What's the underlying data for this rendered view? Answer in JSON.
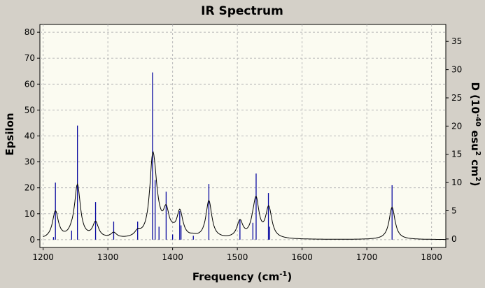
{
  "colors": {
    "window_bg": "#d4d0c8",
    "plot_bg": "#fbfbf1",
    "grid": "#b8b8b8",
    "curve": "#000000",
    "sticks": "#0a0aa0"
  },
  "chart_data": {
    "type": "line",
    "title": "IR Spectrum",
    "xlabel": "Frequency (cm",
    "xlabel_sup": "-1",
    "xlabel_end": ")",
    "ylabel": "Epsilon",
    "y2label": {
      "a": "D (10",
      "a_sup": "-40",
      "b": " esu",
      "b_sup": "2",
      "c": " cm",
      "c_sup": "2",
      "d": ")"
    },
    "xlim": [
      1195,
      1822
    ],
    "ylim": [
      -3,
      83
    ],
    "y2lim": [
      -1.5,
      38
    ],
    "xticks": [
      1200,
      1300,
      1400,
      1500,
      1600,
      1700,
      1800
    ],
    "yticks": [
      0,
      10,
      20,
      30,
      40,
      50,
      60,
      70,
      80
    ],
    "y2ticks": [
      0,
      5,
      10,
      15,
      20,
      25,
      30,
      35
    ],
    "grid": true,
    "baseline_y": 0,
    "curve_range": [
      1200,
      1822
    ],
    "series": [
      {
        "kind": "curve",
        "lorentz_hwhm": 5.5,
        "offset": 1.5,
        "peaks": [
          {
            "x": 1219,
            "y": 10.5
          },
          {
            "x": 1244,
            "y": 1.0
          },
          {
            "x": 1253,
            "y": 20.5
          },
          {
            "x": 1281,
            "y": 6.0
          },
          {
            "x": 1309,
            "y": 2.0
          },
          {
            "x": 1346,
            "y": 2.0
          },
          {
            "x": 1369,
            "y": 26.0
          },
          {
            "x": 1373,
            "y": 9.0
          },
          {
            "x": 1379,
            "y": 2.0
          },
          {
            "x": 1390,
            "y": 9.5
          },
          {
            "x": 1400,
            "y": 1.0
          },
          {
            "x": 1411,
            "y": 9.0
          },
          {
            "x": 1413,
            "y": 1.0
          },
          {
            "x": 1432,
            "y": 0.5
          },
          {
            "x": 1456,
            "y": 14.5
          },
          {
            "x": 1504,
            "y": 6.5
          },
          {
            "x": 1524,
            "y": 2.5
          },
          {
            "x": 1529,
            "y": 14.0
          },
          {
            "x": 1548,
            "y": 9.0
          },
          {
            "x": 1550,
            "y": 3.0
          },
          {
            "x": 1739,
            "y": 12.5
          }
        ]
      },
      {
        "kind": "sticks",
        "points": [
          {
            "x": 1216,
            "y": 1.0
          },
          {
            "x": 1219,
            "y": 22.0
          },
          {
            "x": 1244,
            "y": 3.5
          },
          {
            "x": 1253,
            "y": 44.0
          },
          {
            "x": 1281,
            "y": 14.5
          },
          {
            "x": 1309,
            "y": 7.0
          },
          {
            "x": 1346,
            "y": 7.0
          },
          {
            "x": 1369,
            "y": 64.5
          },
          {
            "x": 1373,
            "y": 23.0
          },
          {
            "x": 1379,
            "y": 5.0
          },
          {
            "x": 1390,
            "y": 18.5
          },
          {
            "x": 1400,
            "y": 2.0
          },
          {
            "x": 1411,
            "y": 11.0
          },
          {
            "x": 1413,
            "y": 5.5
          },
          {
            "x": 1432,
            "y": 1.5
          },
          {
            "x": 1456,
            "y": 21.5
          },
          {
            "x": 1504,
            "y": 7.5
          },
          {
            "x": 1524,
            "y": 6.5
          },
          {
            "x": 1529,
            "y": 25.5
          },
          {
            "x": 1548,
            "y": 18.0
          },
          {
            "x": 1550,
            "y": 5.0
          },
          {
            "x": 1739,
            "y": 21.0
          }
        ]
      }
    ]
  }
}
